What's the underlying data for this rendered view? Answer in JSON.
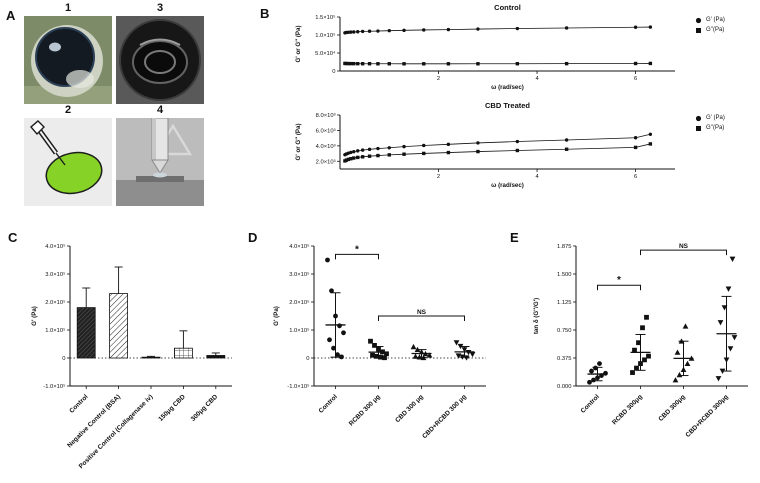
{
  "panel_a": {
    "label": "A",
    "tiles": [
      {
        "num": "1",
        "desc": "enucleated eye photo"
      },
      {
        "num": "3",
        "desc": "eye in dish photo"
      },
      {
        "num": "2",
        "desc": "intravitreal injection diagram"
      },
      {
        "num": "4",
        "desc": "rheometer probe photo"
      }
    ]
  },
  "panel_b": {
    "label": "B"
  },
  "panel_c": {
    "label": "C"
  },
  "panel_d": {
    "label": "D"
  },
  "panel_e": {
    "label": "E"
  },
  "chart_data": [
    {
      "type": "line",
      "title": "Control",
      "xlabel": "ω (rad/sec)",
      "ylabel": "G' or G'' (Pa)",
      "xlim": [
        0,
        6.8
      ],
      "ylim": [
        0,
        150000
      ],
      "yticks": [
        {
          "v": 0,
          "label": "0"
        },
        {
          "v": 50000,
          "label": "5.0×10⁴"
        },
        {
          "v": 100000,
          "label": "1.0×10⁵"
        },
        {
          "v": 150000,
          "label": "1.5×10⁵"
        }
      ],
      "xticks": [
        {
          "v": 2,
          "label": "2"
        },
        {
          "v": 4,
          "label": "4"
        },
        {
          "v": 6,
          "label": "6"
        }
      ],
      "x": [
        0.1,
        0.13,
        0.17,
        0.22,
        0.28,
        0.36,
        0.46,
        0.6,
        0.77,
        1.0,
        1.3,
        1.7,
        2.2,
        2.8,
        3.6,
        4.6,
        6.0,
        6.3
      ],
      "series": [
        {
          "name": "G' (Pa)",
          "marker": "circle",
          "values": [
            106000,
            107000,
            107500,
            108000,
            108500,
            109000,
            110000,
            110500,
            111000,
            112000,
            113000,
            114000,
            115000,
            116500,
            118000,
            119500,
            121500,
            122000
          ]
        },
        {
          "name": "G''(Pa)",
          "marker": "square",
          "values": [
            21000,
            20800,
            20600,
            20500,
            20400,
            20300,
            20200,
            20200,
            20100,
            20100,
            20000,
            20000,
            20000,
            20100,
            20200,
            20400,
            20800,
            21000
          ]
        }
      ]
    },
    {
      "type": "line",
      "title": "CBD Treated",
      "xlabel": "ω (rad/sec)",
      "ylabel": "G' or G'' (Pa)",
      "xlim": [
        0,
        6.8
      ],
      "ylim": [
        1000,
        8000
      ],
      "yticks": [
        {
          "v": 2000,
          "label": "2.0×10³"
        },
        {
          "v": 4000,
          "label": "4.0×10³"
        },
        {
          "v": 6000,
          "label": "6.0×10³"
        },
        {
          "v": 8000,
          "label": "8.0×10³"
        }
      ],
      "xticks": [
        {
          "v": 2,
          "label": "2"
        },
        {
          "v": 4,
          "label": "4"
        },
        {
          "v": 6,
          "label": "6"
        }
      ],
      "x": [
        0.1,
        0.13,
        0.17,
        0.22,
        0.28,
        0.36,
        0.46,
        0.6,
        0.77,
        1.0,
        1.3,
        1.7,
        2.2,
        2.8,
        3.6,
        4.6,
        6.0,
        6.3
      ],
      "series": [
        {
          "name": "G' (Pa)",
          "marker": "circle",
          "values": [
            2850,
            2950,
            3050,
            3150,
            3250,
            3350,
            3450,
            3550,
            3650,
            3750,
            3900,
            4050,
            4200,
            4380,
            4560,
            4760,
            5050,
            5500
          ]
        },
        {
          "name": "G''(Pa)",
          "marker": "square",
          "values": [
            2050,
            2150,
            2250,
            2330,
            2420,
            2500,
            2580,
            2660,
            2740,
            2830,
            2920,
            3020,
            3130,
            3260,
            3400,
            3560,
            3800,
            4250
          ]
        }
      ]
    },
    {
      "type": "bar",
      "ylabel": "G' (Pa)",
      "ylim": [
        -100000,
        400000
      ],
      "zero_line": true,
      "yticks": [
        {
          "v": -100000,
          "label": "-1.0×10⁵"
        },
        {
          "v": 0,
          "label": "0"
        },
        {
          "v": 100000,
          "label": "1.0×10⁵"
        },
        {
          "v": 200000,
          "label": "2.0×10⁵"
        },
        {
          "v": 300000,
          "label": "3.0×10⁵"
        },
        {
          "v": 400000,
          "label": "4.0×10⁵"
        }
      ],
      "categories": [
        "Control",
        "Negative Control (BSA)",
        "Positive Control (Collagenase iv)",
        "150μg CBD",
        "300μg CBD"
      ],
      "values": [
        180000,
        230000,
        3000,
        35000,
        9000
      ],
      "errors": [
        70000,
        95000,
        3000,
        62000,
        9000
      ],
      "patterns": [
        "dark-hatch",
        "diag-hatch",
        "solid",
        "grid-hatch",
        "solid"
      ]
    },
    {
      "type": "scatter",
      "ylabel": "G' (Pa)",
      "ylim": [
        -100000,
        400000
      ],
      "zero_line": true,
      "yticks": [
        {
          "v": -100000,
          "label": "-1.0×10⁵"
        },
        {
          "v": 0,
          "label": "0"
        },
        {
          "v": 100000,
          "label": "1.0×10⁵"
        },
        {
          "v": 200000,
          "label": "2.0×10⁵"
        },
        {
          "v": 300000,
          "label": "3.0×10⁵"
        },
        {
          "v": 400000,
          "label": "4.0×10⁵"
        }
      ],
      "categories": [
        "Control",
        "RCBD 300 μg",
        "CBD 300 μg",
        "CBD+RCBD 300 μg"
      ],
      "groups": [
        {
          "marker": "circle",
          "points": [
            350000,
            240000,
            150000,
            115000,
            90000,
            65000,
            35000,
            12000,
            4000
          ],
          "mean": 118000,
          "sd": 115000
        },
        {
          "marker": "square",
          "points": [
            60000,
            45000,
            32000,
            22000,
            15000,
            10000,
            6000,
            3000,
            1000
          ],
          "mean": 21000,
          "sd": 20000
        },
        {
          "marker": "triangle",
          "points": [
            40000,
            30000,
            22000,
            15000,
            10000,
            6000,
            3000,
            1000
          ],
          "mean": 16000,
          "sd": 14000
        },
        {
          "marker": "triangle-down",
          "points": [
            55000,
            42000,
            30000,
            20000,
            13000,
            8000,
            4000,
            1000
          ],
          "mean": 22000,
          "sd": 19000
        }
      ],
      "annotations": [
        {
          "text": "*",
          "i": 0,
          "j": 1,
          "v": 370000
        },
        {
          "text": "NS",
          "i": 1,
          "j": 3,
          "v": 150000
        }
      ]
    },
    {
      "type": "scatter",
      "ylabel": "tan δ (G''/G')",
      "ylim": [
        0,
        1.875
      ],
      "zero_line": false,
      "yticks": [
        {
          "v": 0,
          "label": "0.000"
        },
        {
          "v": 0.375,
          "label": "0.375"
        },
        {
          "v": 0.75,
          "label": "0.750"
        },
        {
          "v": 1.125,
          "label": "1.125"
        },
        {
          "v": 1.5,
          "label": "1.500"
        },
        {
          "v": 1.875,
          "label": "1.875"
        }
      ],
      "categories": [
        "Control",
        "RCBD 300μg",
        "CBD 300μg",
        "CBD+RCBD 300μg"
      ],
      "groups": [
        {
          "marker": "circle",
          "points": [
            0.05,
            0.08,
            0.11,
            0.14,
            0.17,
            0.2,
            0.24,
            0.3
          ],
          "mean": 0.16,
          "sd": 0.09
        },
        {
          "marker": "square",
          "points": [
            0.18,
            0.24,
            0.3,
            0.35,
            0.4,
            0.48,
            0.58,
            0.78,
            0.92
          ],
          "mean": 0.45,
          "sd": 0.24
        },
        {
          "marker": "triangle",
          "points": [
            0.08,
            0.15,
            0.22,
            0.3,
            0.37,
            0.45,
            0.6,
            0.8
          ],
          "mean": 0.37,
          "sd": 0.23
        },
        {
          "marker": "triangle-down",
          "points": [
            0.1,
            0.2,
            0.35,
            0.5,
            0.65,
            0.85,
            1.05,
            1.3,
            1.7
          ],
          "mean": 0.7,
          "sd": 0.5
        }
      ],
      "annotations": [
        {
          "text": "*",
          "i": 0,
          "j": 1,
          "v": 1.35
        },
        {
          "text": "NS",
          "i": 1,
          "j": 3,
          "v": 1.82
        }
      ]
    }
  ]
}
